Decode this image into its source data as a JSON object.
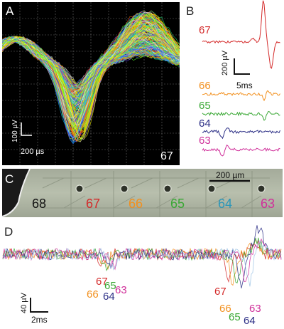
{
  "panels": {
    "A": "A",
    "B": "B",
    "C": "C",
    "D": "D"
  },
  "panel_a": {
    "electrode": "67",
    "scale_y": "100 µV",
    "scale_x": "200 µs"
  },
  "panel_b": {
    "traces": [
      {
        "label": "67",
        "color": "#d42a2a"
      },
      {
        "label": "66",
        "color": "#f2901e"
      },
      {
        "label": "65",
        "color": "#3aa835"
      },
      {
        "label": "64",
        "color": "#2c2f86"
      },
      {
        "label": "63",
        "color": "#d0309a"
      }
    ],
    "scale_y": "200 µV",
    "scale_x": "5ms"
  },
  "panel_c": {
    "electrodes": [
      {
        "label": "68",
        "color": "#111111"
      },
      {
        "label": "67",
        "color": "#d42a2a"
      },
      {
        "label": "66",
        "color": "#f2901e"
      },
      {
        "label": "65",
        "color": "#3aa835"
      },
      {
        "label": "64",
        "color": "#2c96b8"
      },
      {
        "label": "63",
        "color": "#d0309a"
      }
    ],
    "scale": "200  µm"
  },
  "panel_d": {
    "left_labels": [
      {
        "label": "67",
        "color": "#d42a2a"
      },
      {
        "label": "65",
        "color": "#3aa835"
      },
      {
        "label": "66",
        "color": "#f2901e"
      },
      {
        "label": "64",
        "color": "#2c2f86"
      },
      {
        "label": "63",
        "color": "#d0309a"
      }
    ],
    "right_labels": [
      {
        "label": "67",
        "color": "#d42a2a"
      },
      {
        "label": "66",
        "color": "#f2901e"
      },
      {
        "label": "65",
        "color": "#3aa835"
      },
      {
        "label": "64",
        "color": "#2c2f86"
      },
      {
        "label": "63",
        "color": "#d0309a"
      }
    ],
    "scale_y": "40 µV",
    "scale_x": "2ms"
  }
}
